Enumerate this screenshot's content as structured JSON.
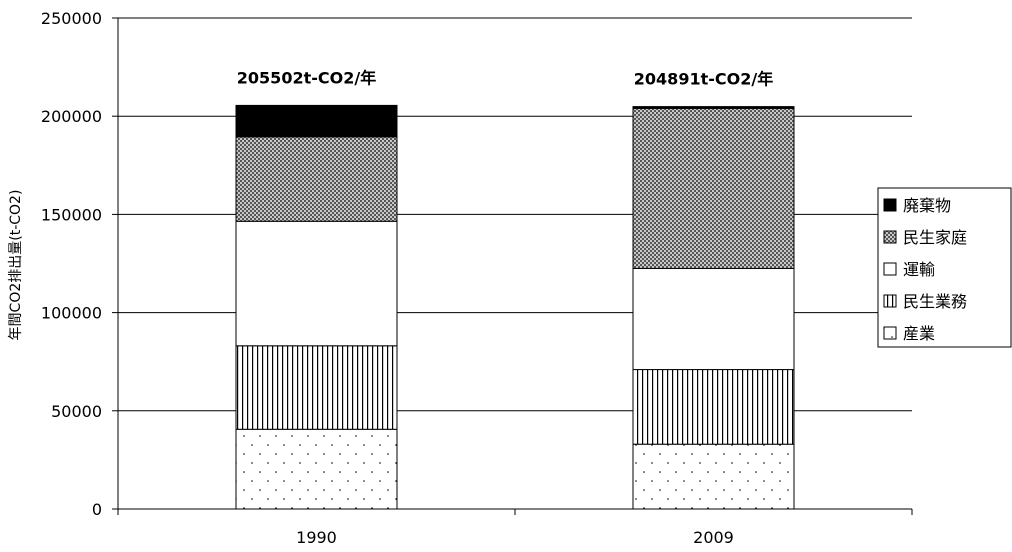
{
  "chart_data": {
    "type": "bar",
    "stacked": true,
    "categories": [
      "1990",
      "2009"
    ],
    "series": [
      {
        "name": "産業",
        "values": [
          40600,
          33000
        ]
      },
      {
        "name": "民生業務",
        "values": [
          42500,
          38000
        ]
      },
      {
        "name": "運輸",
        "values": [
          63400,
          51500
        ]
      },
      {
        "name": "民生家庭",
        "values": [
          43000,
          81500
        ]
      },
      {
        "name": "廃棄物",
        "values": [
          16002,
          891
        ]
      }
    ],
    "totals": [
      205502,
      204891
    ],
    "total_labels": [
      "205502t-CO2/年",
      "204891t-CO2/年"
    ],
    "ylabel": "年間CO2排出量(t-CO2)",
    "ylim": [
      0,
      250000
    ],
    "yticks": [
      "0",
      "50000",
      "100000",
      "150000",
      "200000",
      "250000"
    ],
    "grid": true,
    "legend": "right"
  }
}
